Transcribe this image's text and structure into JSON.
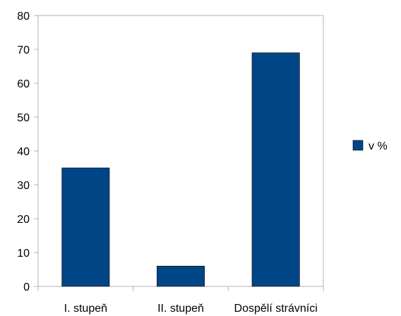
{
  "chart_data": {
    "type": "bar",
    "categories": [
      "I. stupeň",
      "II. stupeň",
      "Dospělí strávníci"
    ],
    "series": [
      {
        "name": "v %",
        "values": [
          35,
          6,
          69
        ],
        "color": "#004586"
      }
    ],
    "ylim": [
      0,
      80
    ],
    "yticks": [
      0,
      10,
      20,
      30,
      40,
      50,
      60,
      70,
      80
    ],
    "grid": false,
    "legend": "right",
    "title": "",
    "xlabel": "",
    "ylabel": ""
  }
}
